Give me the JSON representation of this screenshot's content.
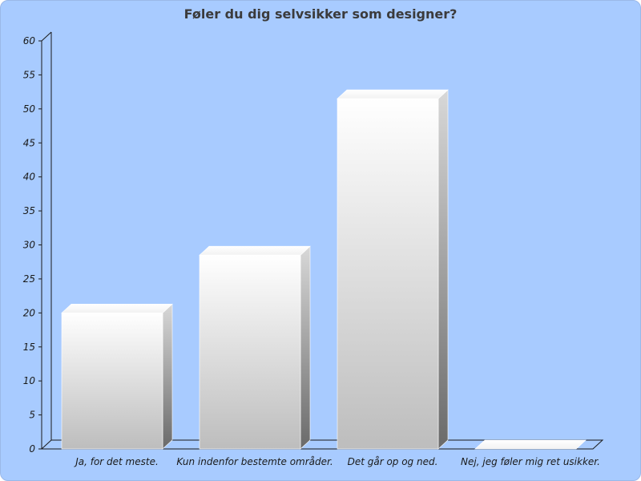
{
  "chart_data": {
    "type": "bar",
    "title": "Føler du dig selvsikker som designer?",
    "categories": [
      "Ja, for det meste.",
      "Kun indenfor bestemte områder.",
      "Det går op og ned.",
      "Nej, jeg føler mig ret usikker."
    ],
    "values": [
      20,
      28.5,
      51.5,
      0
    ],
    "ylim": [
      0,
      60
    ],
    "yticks": [
      0,
      5,
      10,
      15,
      20,
      25,
      30,
      35,
      40,
      45,
      50,
      55,
      60
    ],
    "grid": false,
    "style": "3d",
    "colors": {
      "background": "#a8cbff",
      "bar_top": "#ffffff",
      "bar_bottom": "#bdbdbd",
      "bar_side": "#6e6e6e"
    }
  }
}
